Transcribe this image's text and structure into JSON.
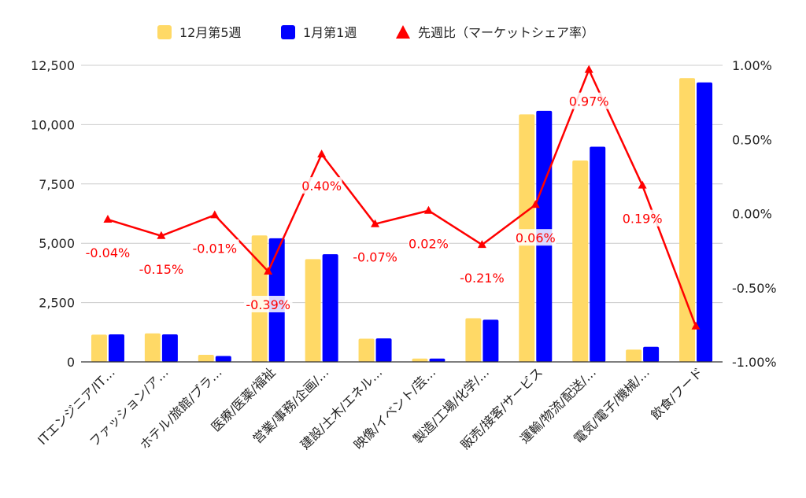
{
  "chart_data": {
    "type": "bar",
    "categories": [
      "ITエンジニア/IT…",
      "ファッション/ア…",
      "ホテル/旅館/ブラ…",
      "医療/医薬/福祉",
      "営業/事務/企画/…",
      "建設/土木/エネル…",
      "映像/イベント/芸…",
      "製造/工場/化学/…",
      "販売/接客/サービス",
      "運輸/物流/配送/…",
      "電気/電子/機械/…",
      "飲食/フード"
    ],
    "series": [
      {
        "name": "12月第5週",
        "type": "bar",
        "axis": "left",
        "color": "#ffd966",
        "values": [
          1150,
          1200,
          300,
          5330,
          4330,
          980,
          140,
          1840,
          10430,
          8490,
          520,
          11960
        ]
      },
      {
        "name": "1月第1週",
        "type": "bar",
        "axis": "left",
        "color": "#0000ff",
        "values": [
          1160,
          1160,
          250,
          5210,
          4540,
          990,
          140,
          1780,
          10580,
          9070,
          640,
          11780
        ]
      },
      {
        "name": "先週比（マーケットシェア率）",
        "type": "line",
        "axis": "right",
        "color": "#ff0000",
        "values": [
          -0.04,
          -0.15,
          -0.01,
          -0.39,
          0.4,
          -0.07,
          0.02,
          -0.21,
          0.06,
          0.97,
          0.19,
          -0.76
        ],
        "labels": [
          "-0.04%",
          "-0.15%",
          "-0.01%",
          "-0.39%",
          "0.40%",
          "-0.07%",
          "0.02%",
          "-0.21%",
          "0.06%",
          "0.97%",
          "0.19%",
          ""
        ]
      }
    ],
    "y_left": {
      "lim": [
        0,
        12500
      ],
      "ticks": [
        0,
        2500,
        5000,
        7500,
        10000,
        12500
      ],
      "tick_labels": [
        "0",
        "2,500",
        "5,000",
        "7,500",
        "10,000",
        "12,500"
      ]
    },
    "y_right": {
      "lim": [
        -1.0,
        1.0
      ],
      "ticks": [
        -1.0,
        -0.5,
        0.0,
        0.5,
        1.0
      ],
      "tick_labels": [
        "-1.00%",
        "-0.50%",
        "0.00%",
        "0.50%",
        "1.00%"
      ]
    },
    "grid": true,
    "legend_position": "top"
  }
}
